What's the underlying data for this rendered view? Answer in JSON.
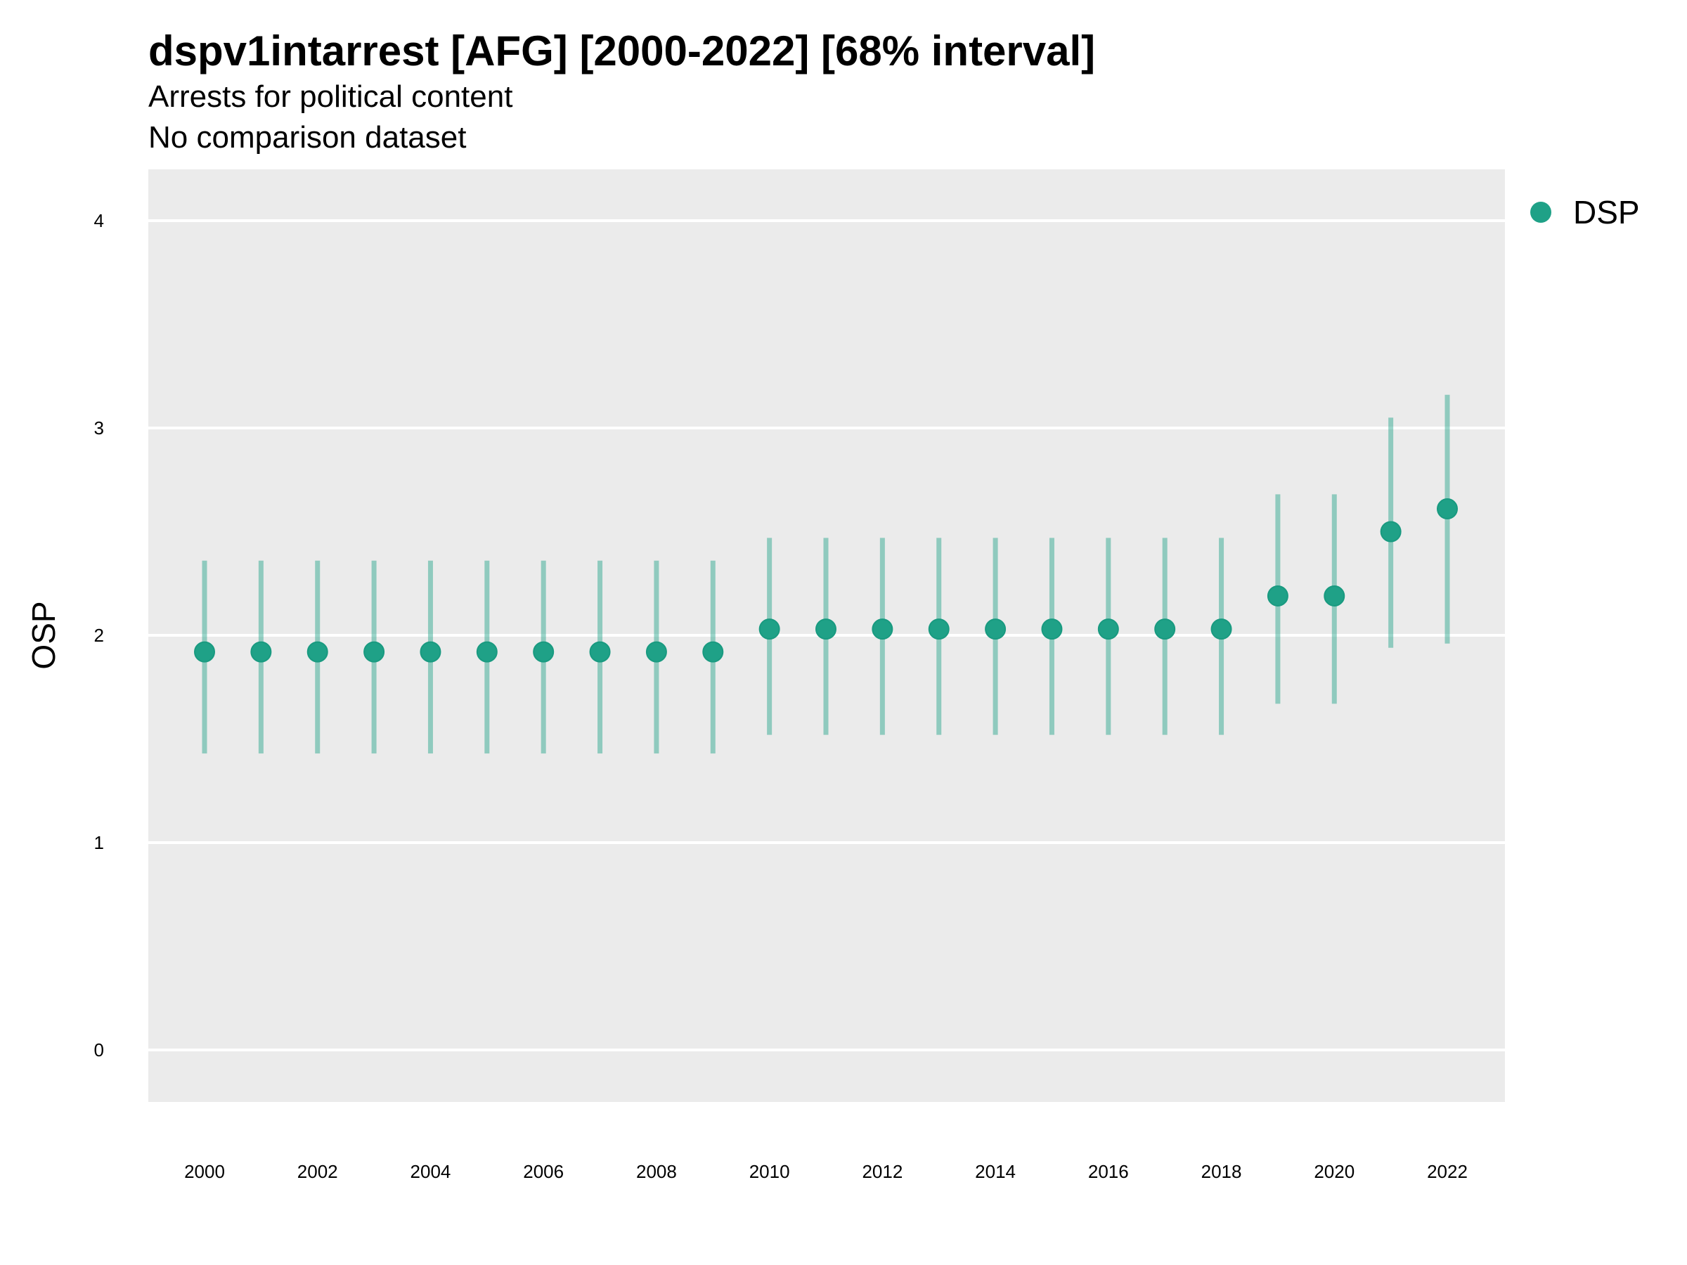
{
  "chart_data": {
    "type": "scatter",
    "title": "dspv1intarrest [AFG] [2000-2022] [68% interval]",
    "subtitle": "Arrests for political content",
    "subtitle2": "No comparison dataset",
    "xlabel": "",
    "ylabel": "OSP",
    "ylim": [
      -0.25,
      4.25
    ],
    "xlim": [
      1999.0,
      2023.0
    ],
    "yticks": [
      0,
      1,
      2,
      3,
      4
    ],
    "xticks": [
      2000,
      2002,
      2004,
      2006,
      2008,
      2010,
      2012,
      2014,
      2016,
      2018,
      2020,
      2022
    ],
    "grid": true,
    "legend_position": "right",
    "series": [
      {
        "name": "DSP",
        "color": "#1fa187",
        "x": [
          2000,
          2001,
          2002,
          2003,
          2004,
          2005,
          2006,
          2007,
          2008,
          2009,
          2010,
          2011,
          2012,
          2013,
          2014,
          2015,
          2016,
          2017,
          2018,
          2019,
          2020,
          2021,
          2022
        ],
        "y": [
          1.92,
          1.92,
          1.92,
          1.92,
          1.92,
          1.92,
          1.92,
          1.92,
          1.92,
          1.92,
          2.03,
          2.03,
          2.03,
          2.03,
          2.03,
          2.03,
          2.03,
          2.03,
          2.03,
          2.19,
          2.19,
          2.5,
          2.61
        ],
        "lower": [
          1.43,
          1.43,
          1.43,
          1.43,
          1.43,
          1.43,
          1.43,
          1.43,
          1.43,
          1.43,
          1.52,
          1.52,
          1.52,
          1.52,
          1.52,
          1.52,
          1.52,
          1.52,
          1.52,
          1.67,
          1.67,
          1.94,
          1.96
        ],
        "upper": [
          2.36,
          2.36,
          2.36,
          2.36,
          2.36,
          2.36,
          2.36,
          2.36,
          2.36,
          2.36,
          2.47,
          2.47,
          2.47,
          2.47,
          2.47,
          2.47,
          2.47,
          2.47,
          2.47,
          2.68,
          2.68,
          3.05,
          3.16
        ]
      }
    ]
  }
}
